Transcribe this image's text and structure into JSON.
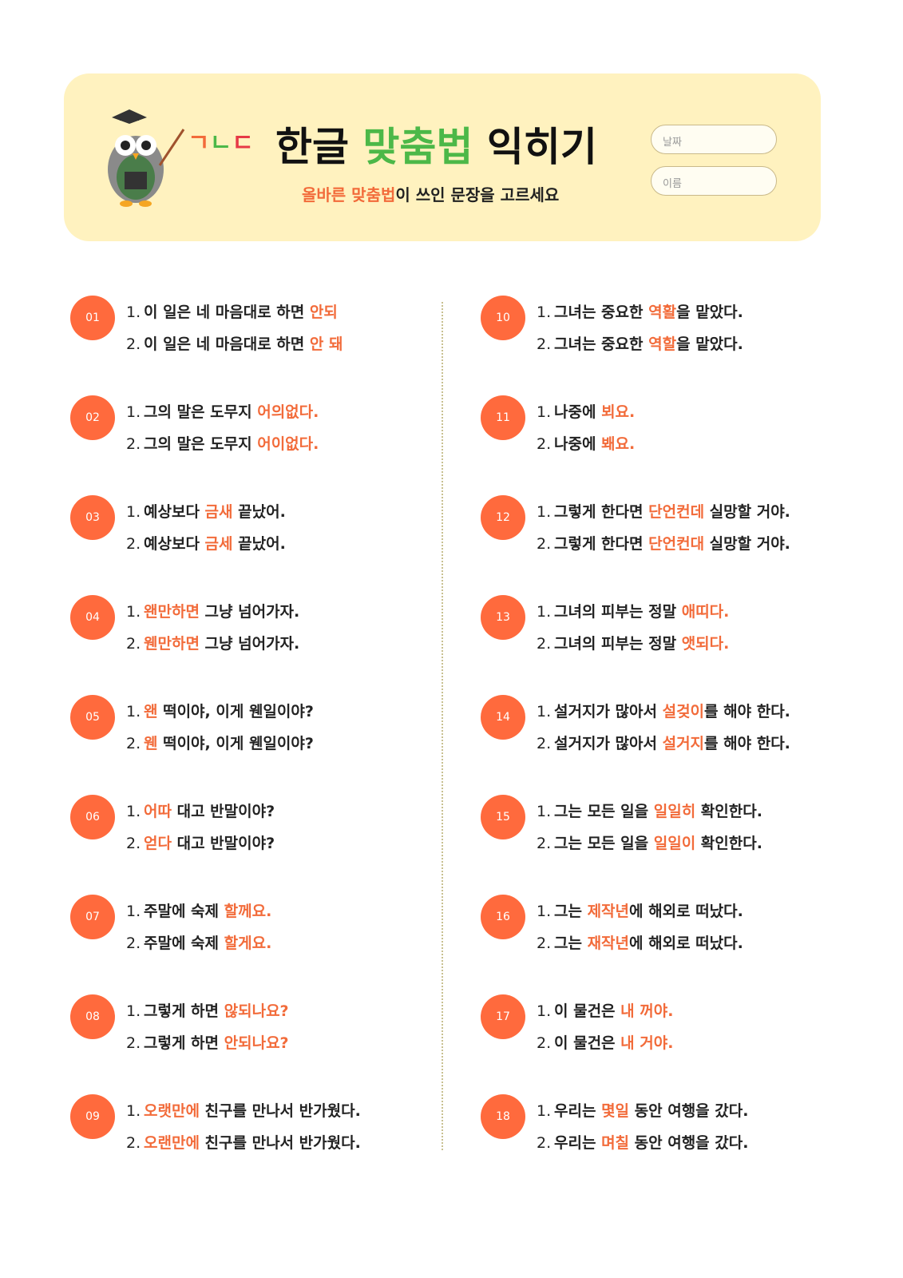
{
  "header": {
    "logo": [
      "ㄱ",
      "ㄴ",
      "ㄷ"
    ],
    "title": {
      "before": "한글 ",
      "highlight": "맞춤법",
      "after": " 익히기"
    },
    "subtitle": {
      "highlight": "올바른 맞춤법",
      "after": "이 쓰인 문장을 고르세요"
    },
    "fields": [
      "날짜",
      "이름"
    ]
  },
  "items": [
    {
      "number": "01",
      "options": [
        {
          "label": "1.",
          "before": "이 일은 네 마음대로 하면 ",
          "highlight": "안되"
        },
        {
          "label": "2.",
          "before": "이 일은 네 마음대로 하면 ",
          "highlight": "안 돼"
        }
      ]
    },
    {
      "number": "02",
      "options": [
        {
          "label": "1.",
          "before": "그의 말은 도무지 ",
          "highlight": "어의없다."
        },
        {
          "label": "2.",
          "before": "그의 말은 도무지 ",
          "highlight": "어이없다."
        }
      ]
    },
    {
      "number": "03",
      "options": [
        {
          "label": "1.",
          "before": "예상보다 ",
          "highlight": "금새",
          "after": " 끝났어."
        },
        {
          "label": "2.",
          "before": "예상보다 ",
          "highlight": "금세",
          "after": " 끝났어."
        }
      ]
    },
    {
      "number": "04",
      "options": [
        {
          "label": "1.",
          "highlight": "왠만하면",
          "after": " 그냥 넘어가자."
        },
        {
          "label": "2.",
          "highlight": "웬만하면",
          "after": " 그냥 넘어가자."
        }
      ]
    },
    {
      "number": "05",
      "options": [
        {
          "label": "1.",
          "highlight": "왠",
          "after": " 떡이야, 이게 웬일이야?"
        },
        {
          "label": "2.",
          "highlight": "웬",
          "after": " 떡이야, 이게 웬일이야?"
        }
      ]
    },
    {
      "number": "06",
      "options": [
        {
          "label": "1.",
          "highlight": "어따",
          "after": " 대고 반말이야?"
        },
        {
          "label": "2.",
          "highlight": "얻다",
          "after": " 대고 반말이야?"
        }
      ]
    },
    {
      "number": "07",
      "options": [
        {
          "label": "1.",
          "before": "주말에 숙제 ",
          "highlight": "할께요."
        },
        {
          "label": "2.",
          "before": "주말에 숙제 ",
          "highlight": "할게요."
        }
      ]
    },
    {
      "number": "08",
      "options": [
        {
          "label": "1.",
          "before": "그렇게 하면 ",
          "highlight": "않되나요?"
        },
        {
          "label": "2.",
          "before": "그렇게 하면 ",
          "highlight": "안되나요?"
        }
      ]
    },
    {
      "number": "09",
      "options": [
        {
          "label": "1.",
          "highlight": "오랫만에",
          "after": " 친구를 만나서 반가웠다."
        },
        {
          "label": "2.",
          "highlight": "오랜만에",
          "after": " 친구를 만나서 반가웠다."
        }
      ]
    },
    {
      "number": "10",
      "options": [
        {
          "label": "1.",
          "before": "그녀는 중요한 ",
          "highlight": "역활",
          "after": "을 맡았다."
        },
        {
          "label": "2.",
          "before": "그녀는 중요한 ",
          "highlight": "역할",
          "after": "을 맡았다."
        }
      ]
    },
    {
      "number": "11",
      "options": [
        {
          "label": "1.",
          "before": "나중에 ",
          "highlight": "뵈요."
        },
        {
          "label": "2.",
          "before": "나중에 ",
          "highlight": "봬요."
        }
      ]
    },
    {
      "number": "12",
      "options": [
        {
          "label": "1.",
          "before": "그렇게 한다면 ",
          "highlight": "단언컨데",
          "after": " 실망할 거야."
        },
        {
          "label": "2.",
          "before": "그렇게 한다면 ",
          "highlight": "단언컨대",
          "after": " 실망할 거야."
        }
      ]
    },
    {
      "number": "13",
      "options": [
        {
          "label": "1.",
          "before": "그녀의 피부는 정말 ",
          "highlight": "애띠다."
        },
        {
          "label": "2.",
          "before": "그녀의 피부는 정말 ",
          "highlight": "앳되다."
        }
      ]
    },
    {
      "number": "14",
      "options": [
        {
          "label": "1.",
          "before": "설거지가 많아서 ",
          "highlight": "설겆이",
          "after": "를 해야 한다."
        },
        {
          "label": "2.",
          "before": "설거지가 많아서 ",
          "highlight": "설거지",
          "after": "를 해야 한다."
        }
      ]
    },
    {
      "number": "15",
      "options": [
        {
          "label": "1.",
          "before": "그는 모든 일을 ",
          "highlight": "일일히",
          "after": " 확인한다."
        },
        {
          "label": "2.",
          "before": "그는 모든 일을 ",
          "highlight": "일일이",
          "after": " 확인한다."
        }
      ]
    },
    {
      "number": "16",
      "options": [
        {
          "label": "1.",
          "before": "그는 ",
          "highlight": "제작년",
          "after": "에 해외로 떠났다."
        },
        {
          "label": "2.",
          "before": "그는 ",
          "highlight": "재작년",
          "after": "에 해외로 떠났다."
        }
      ]
    },
    {
      "number": "17",
      "options": [
        {
          "label": "1.",
          "before": "이 물건은 ",
          "highlight": "내 꺼야."
        },
        {
          "label": "2.",
          "before": "이 물건은 ",
          "highlight": "내 거야."
        }
      ]
    },
    {
      "number": "18",
      "options": [
        {
          "label": "1.",
          "before": "우리는 ",
          "highlight": "몇일",
          "after": " 동안 여행을 갔다."
        },
        {
          "label": "2.",
          "before": "우리는 ",
          "highlight": "며칠",
          "after": " 동안 여행을 갔다."
        }
      ]
    }
  ]
}
